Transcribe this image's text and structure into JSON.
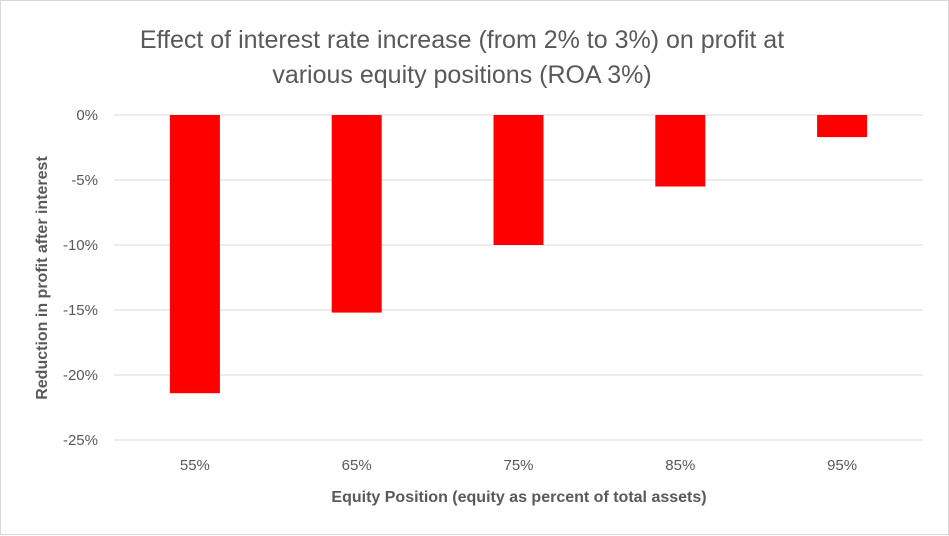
{
  "chart_data": {
    "type": "bar",
    "title_lines": [
      "Effect of interest rate increase (from 2% to 3%) on profit at",
      "various equity positions (ROA 3%)"
    ],
    "xlabel": "Equity Position  (equity as percent of total assets)",
    "ylabel": "Reduction in profit after interest",
    "categories": [
      "55%",
      "65%",
      "75%",
      "85%",
      "95%"
    ],
    "values": [
      -21.4,
      -15.2,
      -10.0,
      -5.5,
      -1.7
    ],
    "ylim": [
      -25,
      0
    ],
    "yticks": [
      0,
      -5,
      -10,
      -15,
      -20,
      -25
    ],
    "ytick_labels": [
      "0%",
      "-5%",
      "-10%",
      "-15%",
      "-20%",
      "-25%"
    ],
    "bar_color": "#ff0000",
    "grid": true,
    "legend": "none"
  }
}
